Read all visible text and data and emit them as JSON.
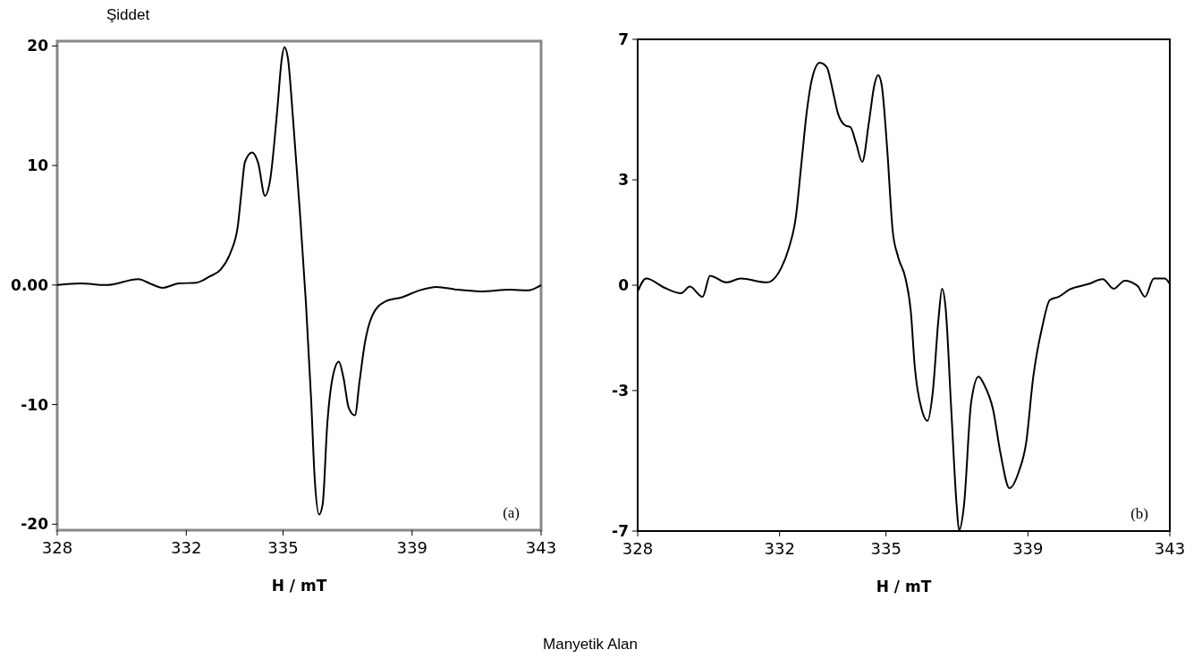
{
  "chart_data": [
    {
      "type": "line",
      "ylabel": "Şiddet",
      "xlabel": "H / mT",
      "annotations": [
        "(a)"
      ],
      "xlim": [
        328,
        343
      ],
      "xticks": [
        328,
        332,
        335,
        339,
        343
      ],
      "ylim": [
        -20.5,
        20.4
      ],
      "yticks": [
        20,
        10,
        {
          "value": 0,
          "label": "0.00"
        },
        -10,
        -20
      ],
      "series": [
        {
          "color": "#000000",
          "x": [
            328,
            328.71,
            329.54,
            330.51,
            330.93,
            331.26,
            331.76,
            332.32,
            332.73,
            333.07,
            333.37,
            333.6,
            333.71,
            333.82,
            334.04,
            334.23,
            334.44,
            334.6,
            334.82,
            334.96,
            335.04,
            335.15,
            335.31,
            335.51,
            335.71,
            335.87,
            335.98,
            336.12,
            336.23,
            336.37,
            336.54,
            336.73,
            336.87,
            337.04,
            337.23,
            337.37,
            337.54,
            337.76,
            338.15,
            338.71,
            339.23,
            339.76,
            340.37,
            341.12,
            342.04,
            342.59,
            343
          ],
          "values": [
            0,
            0.13,
            0,
            0.5,
            0.06,
            -0.23,
            0.13,
            0.2,
            0.72,
            1.3,
            2.7,
            4.97,
            7.76,
            10.3,
            11.1,
            10.2,
            7.46,
            8.78,
            14.6,
            18.9,
            19.9,
            19,
            13.9,
            6.6,
            -1.5,
            -9.5,
            -16.1,
            -19.2,
            -18.3,
            -11.7,
            -7.7,
            -6.4,
            -7.7,
            -10.3,
            -10.9,
            -8.1,
            -4.8,
            -2.6,
            -1.4,
            -1,
            -0.45,
            -0.16,
            -0.38,
            -0.53,
            -0.38,
            -0.45,
            0
          ]
        }
      ]
    },
    {
      "type": "line",
      "xlabel": "H / mT",
      "annotations": [
        "(b)",
        "Manyetik Alan"
      ],
      "xlim": [
        328,
        343
      ],
      "xticks": [
        328,
        332,
        335,
        339,
        343
      ],
      "ylim": [
        -7,
        7
      ],
      "yticks": [
        7,
        3,
        0,
        -3,
        -7
      ],
      "series": [
        {
          "color": "#000000",
          "x": [
            328,
            328.24,
            328.75,
            329.22,
            329.47,
            329.83,
            330.04,
            330.5,
            330.91,
            331.64,
            332.05,
            332.25,
            332.46,
            332.61,
            332.77,
            332.92,
            333.13,
            333.33,
            333.49,
            333.64,
            333.85,
            334,
            334.16,
            334.33,
            334.52,
            334.67,
            334.78,
            334.88,
            335.03,
            335.19,
            335.34,
            335.55,
            335.7,
            335.81,
            336.01,
            336.17,
            336.32,
            336.48,
            336.58,
            336.68,
            336.84,
            336.99,
            337.06,
            337.2,
            337.4,
            337.61,
            337.76,
            338.02,
            338.23,
            338.48,
            338.74,
            338.95,
            339.15,
            339.41,
            339.62,
            339.87,
            340.18,
            340.7,
            341.11,
            341.42,
            341.73,
            342.09,
            342.3,
            342.55,
            342.86,
            343
          ],
          "values": [
            -0.18,
            0.19,
            -0.07,
            -0.23,
            -0.04,
            -0.33,
            0.27,
            0.08,
            0.19,
            0.08,
            0.5,
            1.02,
            1.95,
            3.41,
            4.96,
            5.9,
            6.33,
            6.21,
            5.59,
            4.91,
            4.55,
            4.5,
            4.03,
            3.51,
            4.65,
            5.69,
            5.98,
            5.69,
            3.93,
            1.54,
            0.81,
            0.19,
            -0.75,
            -2.31,
            -3.55,
            -3.86,
            -3.03,
            -0.96,
            -0.1,
            -0.64,
            -3.55,
            -6.25,
            -6.98,
            -6.25,
            -3.34,
            -2.6,
            -2.82,
            -3.55,
            -4.8,
            -5.78,
            -5.32,
            -4.49,
            -2.62,
            -1.16,
            -0.42,
            -0.33,
            -0.12,
            0.03,
            0.17,
            -0.1,
            0.13,
            -0.02,
            -0.33,
            0.19,
            0.19,
            0.03
          ]
        }
      ]
    }
  ]
}
